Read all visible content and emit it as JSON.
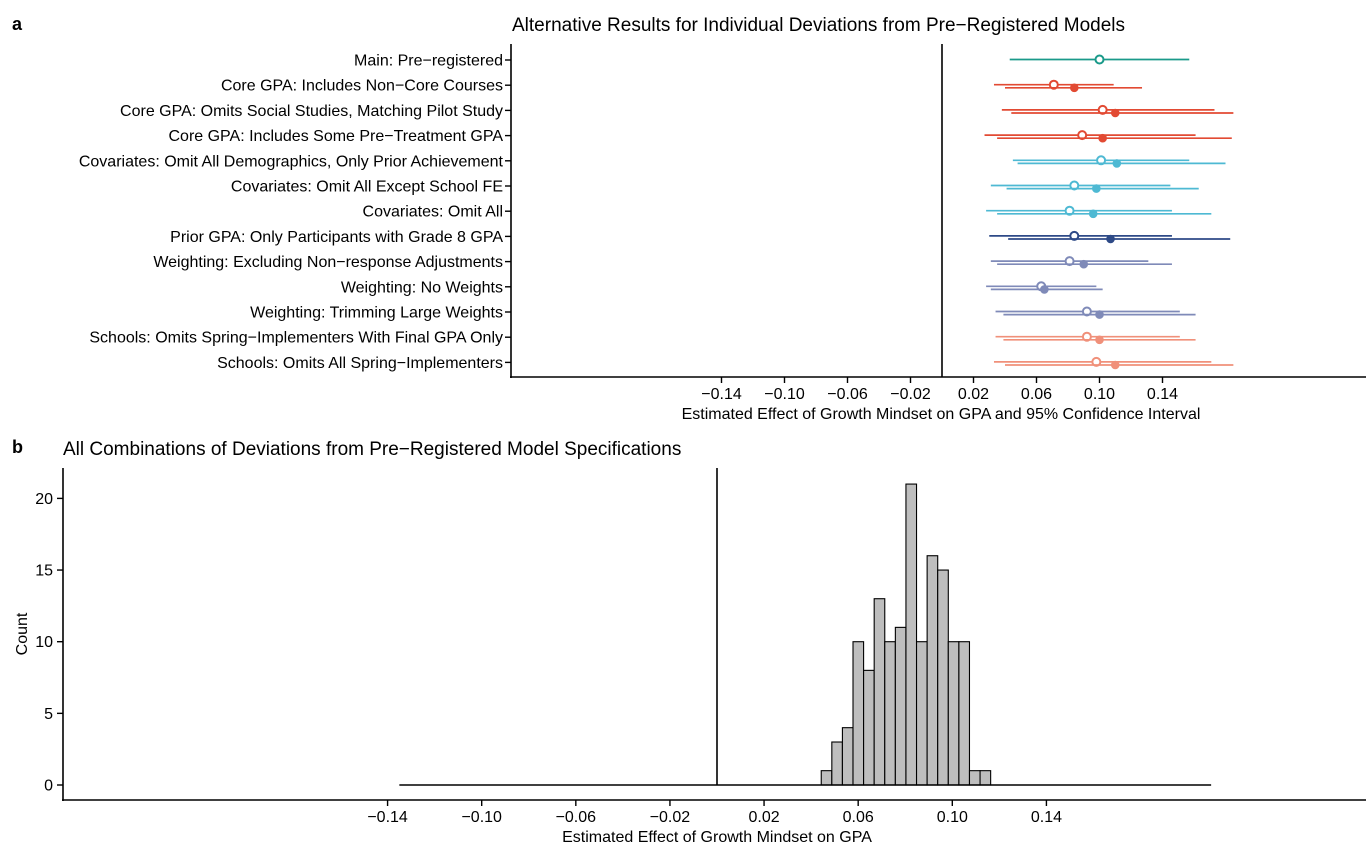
{
  "chart_data": [
    {
      "panel_label": "a",
      "type": "scatter",
      "title": "Alternative Results for Individual Deviations from Pre−Registered Models",
      "xlabel": "Estimated Effect of Growth Mindset on GPA and 95% Confidence Interval",
      "ylabel": "",
      "xlim": [
        -0.155,
        0.155
      ],
      "x_ticks": [
        "−0.14",
        "−0.10",
        "−0.06",
        "−0.02",
        "0.02",
        "0.06",
        "0.10",
        "0.14"
      ],
      "reference_line_x": 0,
      "categories": [
        "Main: Pre−registered",
        "Core GPA: Includes Non−Core Courses",
        "Core GPA: Omits Social Studies, Matching Pilot Study",
        "Core GPA: Includes Some Pre−Treatment GPA",
        "Covariates: Omit All Demographics, Only Prior Achievement",
        "Covariates: Omit All Except School FE",
        "Covariates: Omit All",
        "Prior GPA: Only Participants with Grade 8 GPA",
        "Weighting: Excluding Non−response Adjustments",
        "Weighting: No Weights",
        "Weighting: Trimming Large Weights",
        "Schools: Omits Spring−Implementers With Final GPA Only",
        "Schools: Omits All Spring−Implementers"
      ],
      "colors": [
        "#1a9a8a",
        "#e24a33",
        "#e24a33",
        "#e24a33",
        "#4eb9d3",
        "#4eb9d3",
        "#4eb9d3",
        "#2e4a87",
        "#7f8ab8",
        "#7f8ab8",
        "#7f8ab8",
        "#f0907a",
        "#f0907a"
      ],
      "series": [
        {
          "marker": "open-circle",
          "estimates": [
            0.1,
            0.071,
            0.102,
            0.089,
            0.101,
            0.084,
            0.081,
            0.084,
            0.081,
            0.063,
            0.092,
            0.092,
            0.098
          ],
          "ci_low": [
            0.043,
            0.033,
            0.038,
            0.027,
            0.045,
            0.031,
            0.028,
            0.03,
            0.031,
            0.028,
            0.034,
            0.034,
            0.033
          ],
          "ci_high": [
            0.157,
            0.109,
            0.173,
            0.161,
            0.157,
            0.145,
            0.146,
            0.146,
            0.131,
            0.098,
            0.151,
            0.151,
            0.171
          ]
        },
        {
          "marker": "filled-circle",
          "estimates": [
            null,
            0.084,
            0.11,
            0.102,
            0.111,
            0.098,
            0.096,
            0.107,
            0.09,
            0.065,
            0.1,
            0.1,
            0.11
          ],
          "ci_low": [
            null,
            0.04,
            0.044,
            0.035,
            0.048,
            0.041,
            0.035,
            0.042,
            0.035,
            0.031,
            0.039,
            0.039,
            0.04
          ],
          "ci_high": [
            null,
            0.127,
            0.185,
            0.184,
            0.18,
            0.163,
            0.171,
            0.183,
            0.146,
            0.102,
            0.161,
            0.161,
            0.185
          ]
        }
      ]
    },
    {
      "panel_label": "b",
      "type": "bar",
      "title": "All Combinations of Deviations from Pre−Registered Model Specifications",
      "xlabel": "Estimated Effect of Growth Mindset on GPA",
      "ylabel": "Count",
      "xlim": [
        -0.155,
        0.155
      ],
      "ylim": [
        0,
        22
      ],
      "x_ticks": [
        "−0.14",
        "−0.10",
        "−0.06",
        "−0.02",
        "0.02",
        "0.06",
        "0.10",
        "0.14"
      ],
      "y_ticks": [
        "0",
        "5",
        "10",
        "15",
        "20"
      ],
      "reference_line_x": 0,
      "bar_color": "#bebebe",
      "bin_width": 0.0045,
      "bin_start": 0.0443,
      "values": [
        1,
        3,
        4,
        10,
        8,
        13,
        10,
        11,
        21,
        10,
        16,
        15,
        10,
        10,
        1,
        1
      ],
      "baseline_extent": [
        -0.135,
        0.21
      ]
    }
  ]
}
